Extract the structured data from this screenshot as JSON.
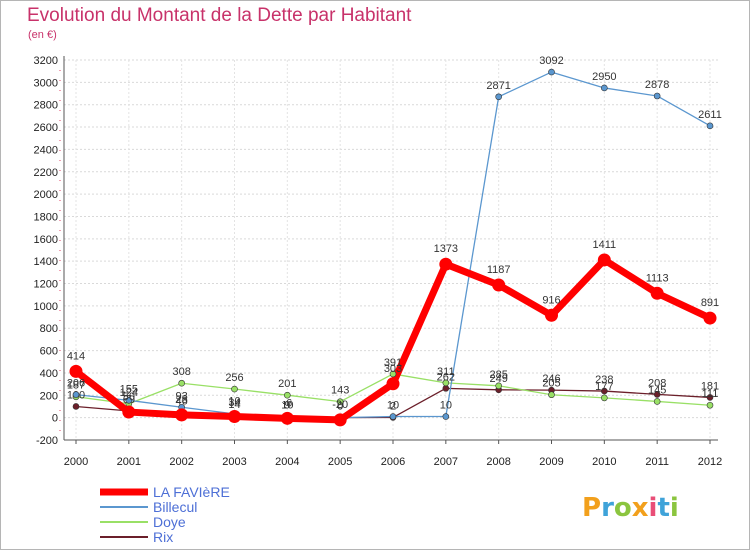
{
  "title": "Evolution du Montant de la Dette par Habitant",
  "unit": "(en €)",
  "logo": "Proxiti",
  "chart_data": {
    "type": "line",
    "title": "Evolution du Montant de la Dette par Habitant",
    "ylabel": "(en €)",
    "ylim": [
      -200,
      3200
    ],
    "yticks": [
      -200,
      0,
      200,
      400,
      600,
      800,
      1000,
      1200,
      1400,
      1600,
      1800,
      2000,
      2200,
      2400,
      2600,
      2800,
      3000,
      3200
    ],
    "x": [
      2000,
      2001,
      2002,
      2003,
      2004,
      2005,
      2006,
      2007,
      2008,
      2009,
      2010,
      2011,
      2012
    ],
    "grid": true,
    "legend_position": "bottom-left",
    "series": [
      {
        "name": "Rix",
        "color": "#6b1f2a",
        "values": [
          100,
          60,
          46,
          14,
          10,
          0,
          2,
          262,
          249,
          246,
          238,
          208,
          181
        ]
      },
      {
        "name": "Doye",
        "color": "#99e066",
        "values": [
          187,
          124,
          308,
          256,
          201,
          143,
          391,
          311,
          285,
          205,
          177,
          145,
          111
        ]
      },
      {
        "name": "Billecul",
        "color": "#5b97cf",
        "values": [
          206,
          155,
          93,
          34,
          9,
          0,
          10,
          10,
          2871,
          3092,
          2950,
          2878,
          2611
        ]
      },
      {
        "name": "LA FAVIèRE",
        "color": "#ff0000",
        "values": [
          414,
          50,
          25,
          10,
          -6,
          -20,
          303,
          1373,
          1187,
          916,
          1411,
          1113,
          891
        ],
        "bold": true
      }
    ]
  }
}
